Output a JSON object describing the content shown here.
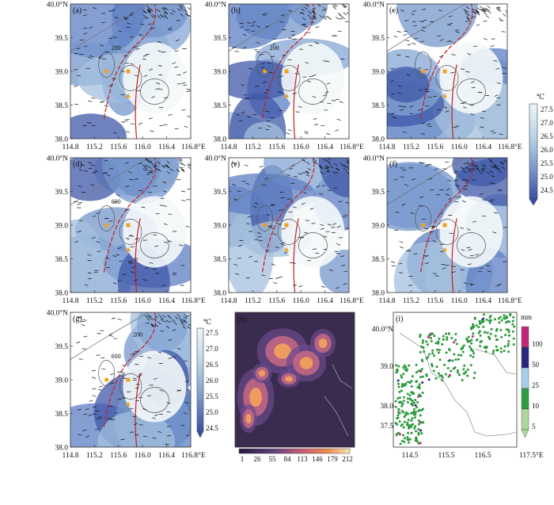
{
  "colors": {
    "temp_colorbar": [
      "#3a4fa6",
      "#5a79c0",
      "#7e9dcf",
      "#a9c4df",
      "#cfe1ec",
      "#eef5f8"
    ],
    "precip_colorbar": [
      "#aed89a",
      "#2e9e45",
      "#a9cfe8",
      "#2d2580",
      "#c2257a"
    ],
    "contour_red": "#c81e1e",
    "marker_orange": "#f2a11b",
    "station_green": "#2a9a3a"
  },
  "units": {
    "temp": "℃",
    "precip": "mm"
  },
  "panels": [
    {
      "label": "(a)",
      "x_ticks": [
        "114.8",
        "115.2",
        "115.6",
        "116.0",
        "116.4",
        "116.8°E"
      ],
      "y_ticks": [
        "40.0°N",
        "39.5",
        "39.0",
        "38.5",
        "38.0"
      ],
      "contour_label": "200",
      "contour_label2": ""
    },
    {
      "label": "(b)",
      "x_ticks": [
        "114.8",
        "115.2",
        "115.6",
        "116.0",
        "116.4",
        "116.8°E"
      ],
      "y_ticks": [
        "40.0°N",
        "39.5",
        "39.0",
        "38.5",
        "38.0"
      ],
      "contour_label": "200",
      "contour_label2": ""
    },
    {
      "label": "(c)",
      "x_ticks": [
        "114.8",
        "115.2",
        "115.6",
        "116.0",
        "116.4",
        "116.8°E"
      ],
      "y_ticks": [
        "40.0°N",
        "39.5",
        "39.0",
        "38.5",
        "38.0"
      ],
      "contour_label": "",
      "contour_label2": ""
    },
    {
      "label": "(d)",
      "x_ticks": [
        "114.8",
        "115.2",
        "115.6",
        "116.0",
        "116.4",
        "116.8°E"
      ],
      "y_ticks": [
        "40.0°N",
        "39.5",
        "39.0",
        "38.5",
        "38.0"
      ],
      "contour_label": "600",
      "contour_label2": ""
    },
    {
      "label": "(e)",
      "x_ticks": [
        "114.8",
        "115.2",
        "115.6",
        "116.0",
        "116.4",
        "116.8°E"
      ],
      "y_ticks": [
        "40.0°N",
        "39.5",
        "39.0",
        "38.5",
        "38.0"
      ],
      "contour_label": "",
      "contour_label2": ""
    },
    {
      "label": "(f)",
      "x_ticks": [
        "114.8",
        "115.2",
        "115.6",
        "116.0",
        "116.4",
        "116.8°E"
      ],
      "y_ticks": [
        "40.0°N",
        "39.5",
        "39.0",
        "38.5",
        "38.0"
      ],
      "contour_label": "",
      "contour_label2": ""
    },
    {
      "label": "(g)",
      "x_ticks": [
        "114.8",
        "115.2",
        "115.6",
        "116.0",
        "116.4",
        "116.8°E"
      ],
      "y_ticks": [
        "40.0°N",
        "39.5",
        "39.0",
        "38.5",
        "38.0"
      ],
      "contour_label": "600",
      "contour_label2": "200"
    }
  ],
  "temp_colorbar_ticks": [
    "27.5",
    "27.0",
    "26.5",
    "26.0",
    "25.5",
    "25.0",
    "24.5"
  ],
  "panel_h": {
    "label": "(h)",
    "ticks": [
      "1",
      "26",
      "55",
      "84",
      "113",
      "146",
      "179",
      "212"
    ]
  },
  "panel_i": {
    "label": "(i)",
    "x_ticks": [
      "114.5",
      "115.5",
      "116.5",
      "117.5°E"
    ],
    "y_ticks": [
      "40.0°N",
      "39.0",
      "38.0",
      "37.5"
    ],
    "colorbar_ticks": [
      "100",
      "50",
      "25",
      "10",
      "5"
    ]
  }
}
